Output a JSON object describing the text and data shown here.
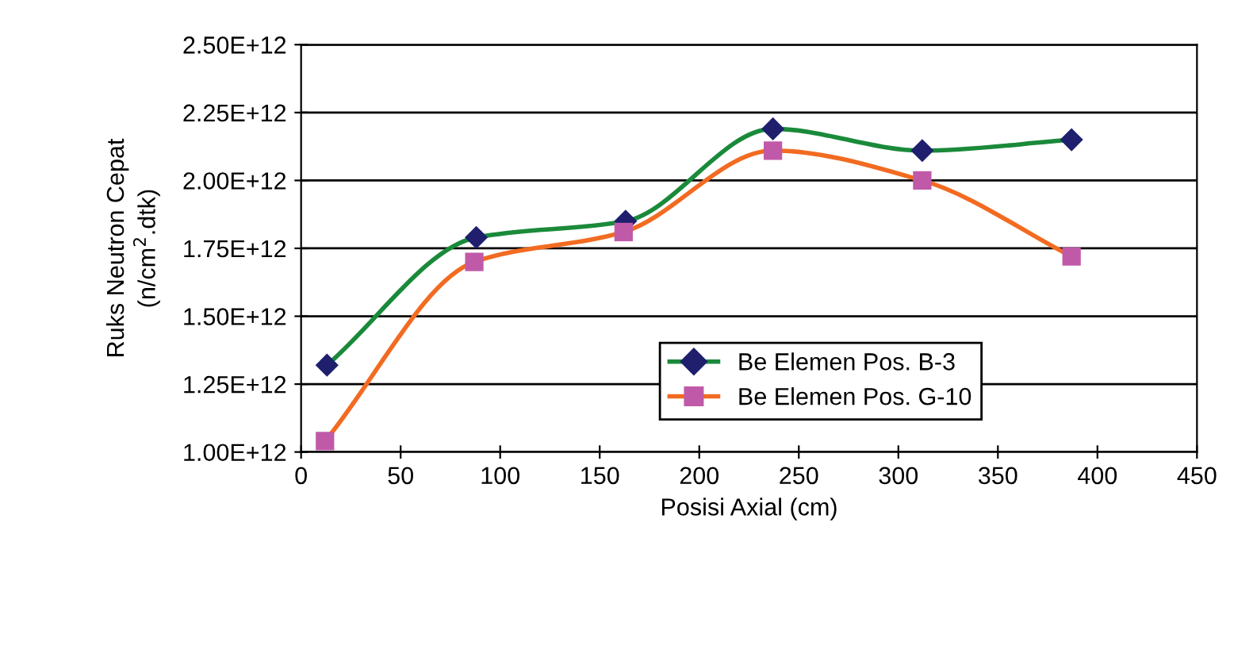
{
  "chart_data": {
    "type": "line",
    "xlabel": "Posisi Axial (cm)",
    "ylabel": "Ruks Neutron Cepat\n(n/cm$^{2}$.dtk)",
    "xlim": [
      0,
      450
    ],
    "xticks": [
      0,
      50,
      100,
      150,
      200,
      250,
      300,
      350,
      400,
      450
    ],
    "ylim": [
      1000000000000.0,
      2500000000000.0
    ],
    "yticks": [
      {
        "value": 1000000000000.0,
        "label": "1.00E+12"
      },
      {
        "value": 1250000000000.0,
        "label": "1.25E+12"
      },
      {
        "value": 1500000000000.0,
        "label": "1.50E+12"
      },
      {
        "value": 1750000000000.0,
        "label": "1.75E+12"
      },
      {
        "value": 2000000000000.0,
        "label": "2.00E+12"
      },
      {
        "value": 2250000000000.0,
        "label": "2.25E+12"
      },
      {
        "value": 2500000000000.0,
        "label": "2.50E+12"
      }
    ],
    "grid": "y",
    "legend": "bottom",
    "line_style": "solid",
    "series": [
      {
        "name": "Be Elemen Pos. B-3",
        "color": "#1a8a3a",
        "colors": [
          "#1f1f6e",
          "#1f1f6e",
          "#1f1f6e",
          "#1f1f6e",
          "#1f1f6e",
          "#1f1f6e"
        ],
        "marker": "diamond",
        "x": [
          13,
          88,
          163,
          237,
          312,
          387
        ],
        "values": [
          1320000000000.0,
          1790000000000.0,
          1850000000000.0,
          2190000000000.0,
          2110000000000.0,
          2150000000000.0
        ]
      },
      {
        "name": "Be Elemen Pos. G-10",
        "color": "#f26b21",
        "colors": [
          "#c05aa8",
          "#c05aa8",
          "#c05aa8",
          "#c05aa8",
          "#c05aa8",
          "#c05aa8"
        ],
        "marker": "square",
        "x": [
          12,
          87,
          162,
          237,
          312,
          387
        ],
        "values": [
          1040000000000.0,
          1700000000000.0,
          1810000000000.0,
          2110000000000.0,
          2000000000000.0,
          1720000000000.0
        ]
      }
    ]
  }
}
